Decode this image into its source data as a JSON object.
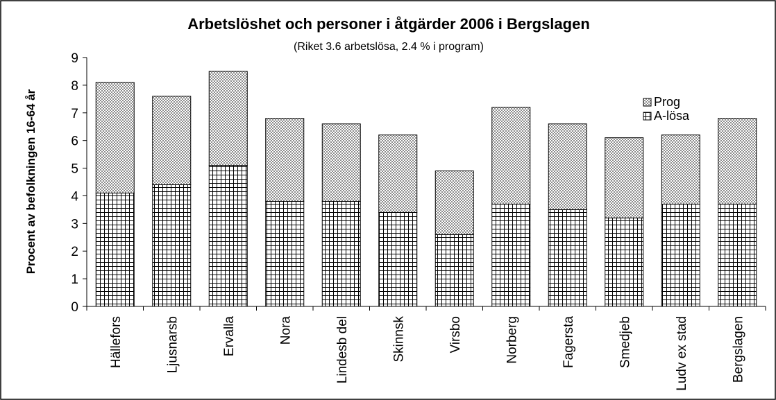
{
  "chart_data": {
    "type": "bar",
    "stacked": true,
    "title": "Arbetslöshet och personer i åtgärder 2006 i Bergslagen",
    "subtitle": "(Riket 3.6 arbetslösa, 2.4 % i program)",
    "y_label": "Procent av befolkningen 16-64 år",
    "categories": [
      "Hällefors",
      "Ljusnarsb",
      "Ervalla",
      "Nora",
      "Lindesb del",
      "Skinnsk",
      "Virsbo",
      "Norberg",
      "Fagersta",
      "Smedjeb",
      "Ludv ex stad",
      "Bergslagen"
    ],
    "series": [
      {
        "name": "A-lösa",
        "color": "#000000",
        "values": [
          4.1,
          4.4,
          5.1,
          3.8,
          3.8,
          3.4,
          2.6,
          3.7,
          3.5,
          3.2,
          3.7,
          3.7
        ]
      },
      {
        "name": "Prog",
        "color": "#8c8c8c",
        "values": [
          4.0,
          3.2,
          3.4,
          3.0,
          2.8,
          2.8,
          2.3,
          3.5,
          3.1,
          2.9,
          2.5,
          3.1
        ]
      }
    ],
    "ylim": [
      0,
      9
    ],
    "yticks": [
      0,
      1,
      2,
      3,
      4,
      5,
      6,
      7,
      8,
      9
    ],
    "legend": "upper right"
  }
}
